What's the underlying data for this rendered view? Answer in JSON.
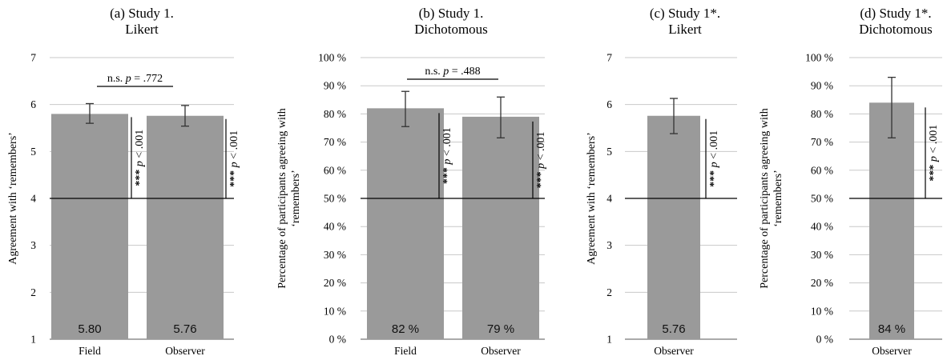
{
  "chart_data": [
    {
      "type": "bar",
      "title": [
        "(a) Study 1.",
        "Likert"
      ],
      "ylabel": [
        "Agreement with ‘remembers’"
      ],
      "ylim": [
        1,
        7
      ],
      "yticks": [
        "1",
        "2",
        "3",
        "4",
        "5",
        "6",
        "7"
      ],
      "categories": [
        "Field",
        "Observer"
      ],
      "values": [
        5.8,
        5.76
      ],
      "value_labels": [
        "5.80",
        "5.76"
      ],
      "error_bars": [
        [
          5.6,
          6.02
        ],
        [
          5.54,
          5.98
        ]
      ],
      "reference_line": 4,
      "significance": [
        "*** p < .001",
        "*** p < .001"
      ],
      "comparison": "n.s. p = .772",
      "grid": true
    },
    {
      "type": "bar",
      "title": [
        "(b) Study 1.",
        "Dichotomous"
      ],
      "ylabel": [
        "Percentage of participants agreeing with",
        "‘remembers’"
      ],
      "ylim": [
        0,
        100
      ],
      "yticks": [
        "0 %",
        "10 %",
        "20 %",
        "30 %",
        "40 %",
        "50 %",
        "60 %",
        "70 %",
        "80 %",
        "90 %",
        "100 %"
      ],
      "categories": [
        "Field",
        "Observer"
      ],
      "values": [
        82,
        79
      ],
      "value_labels": [
        "82 %",
        "79 %"
      ],
      "error_bars": [
        [
          75.5,
          88
        ],
        [
          71.5,
          86
        ]
      ],
      "reference_line": 50,
      "significance": [
        "*** p < .001",
        "*** p < .001"
      ],
      "comparison": "n.s. p = .488",
      "grid": true
    },
    {
      "type": "bar",
      "title": [
        "(c) Study 1*.",
        "Likert"
      ],
      "ylabel": [
        "Agreement with ‘remembers’"
      ],
      "ylim": [
        1,
        7
      ],
      "yticks": [
        "1",
        "2",
        "3",
        "4",
        "5",
        "6",
        "7"
      ],
      "categories": [
        "Observer"
      ],
      "values": [
        5.76
      ],
      "value_labels": [
        "5.76"
      ],
      "error_bars": [
        [
          5.38,
          6.13
        ]
      ],
      "reference_line": 4,
      "significance": [
        "*** p < .001"
      ],
      "comparison": "",
      "grid": true
    },
    {
      "type": "bar",
      "title": [
        "(d) Study 1*.",
        "Dichotomous"
      ],
      "ylabel": [
        "Percentage of participants agreeing with",
        "‘remembers’"
      ],
      "ylim": [
        0,
        100
      ],
      "yticks": [
        "0 %",
        "10 %",
        "20 %",
        "30 %",
        "40 %",
        "50 %",
        "60 %",
        "70 %",
        "80 %",
        "90 %",
        "100 %"
      ],
      "categories": [
        "Observer"
      ],
      "values": [
        84
      ],
      "value_labels": [
        "84 %"
      ],
      "error_bars": [
        [
          71.5,
          93
        ]
      ],
      "reference_line": 50,
      "significance": [
        "*** p < .001"
      ],
      "comparison": "",
      "grid": true
    }
  ],
  "colors": {
    "bar": "#9a9a9a",
    "grid": "#c8c8c8",
    "reference": "#000000",
    "error": "#333333",
    "text": "#000000"
  }
}
